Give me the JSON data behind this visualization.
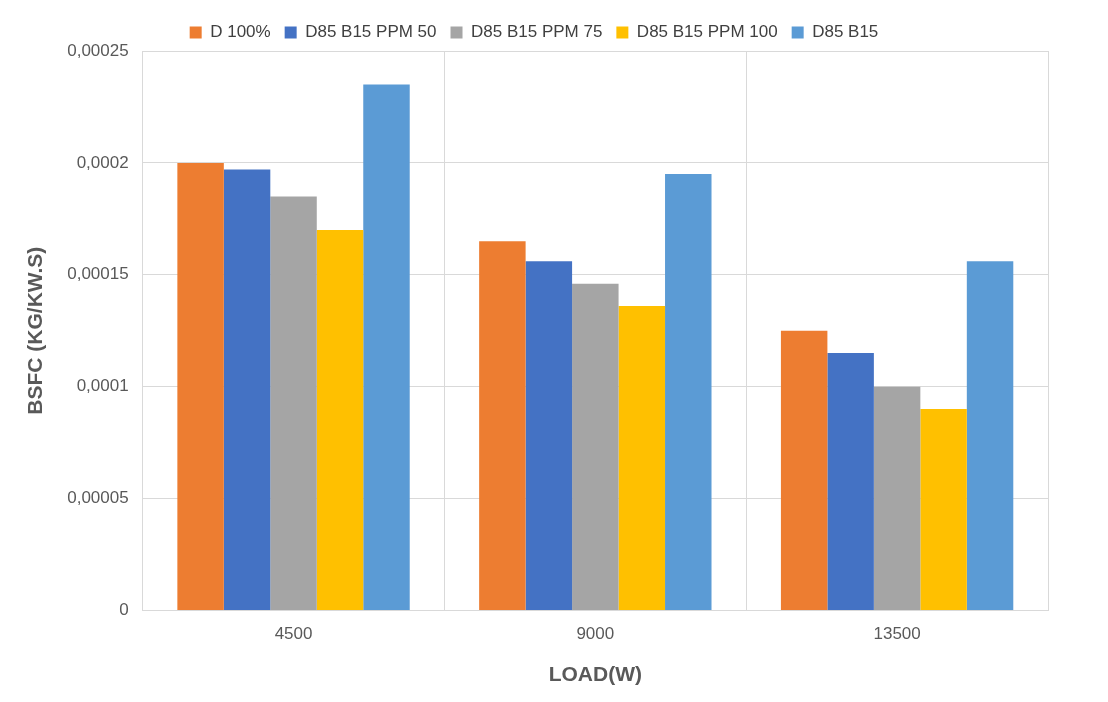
{
  "chart_data": {
    "type": "bar",
    "xlabel": "LOAD(W)",
    "ylabel": "BSFC (KG/KW.S)",
    "categories": [
      "4500",
      "9000",
      "13500"
    ],
    "series": [
      {
        "name": "D 100%",
        "color": "#ed7d31",
        "values": [
          0.0002,
          0.000165,
          0.000125
        ]
      },
      {
        "name": "D85 B15 PPM 50",
        "color": "#4472c4",
        "values": [
          0.000197,
          0.000156,
          0.000115
        ]
      },
      {
        "name": "D85 B15 PPM 75",
        "color": "#a5a5a5",
        "values": [
          0.000185,
          0.000146,
          0.0001
        ]
      },
      {
        "name": "D85 B15 PPM 100",
        "color": "#ffc000",
        "values": [
          0.00017,
          0.000136,
          9e-05
        ]
      },
      {
        "name": "D85 B15",
        "color": "#5b9bd5",
        "values": [
          0.000235,
          0.000195,
          0.000156
        ]
      }
    ],
    "ylim": [
      0,
      0.00025
    ],
    "yticks": [
      {
        "value": 0,
        "label": "0"
      },
      {
        "value": 5e-05,
        "label": "0,00005"
      },
      {
        "value": 0.0001,
        "label": "0,0001"
      },
      {
        "value": 0.00015,
        "label": "0,00015"
      },
      {
        "value": 0.0002,
        "label": "0,0002"
      },
      {
        "value": 0.00025,
        "label": "0,00025"
      }
    ],
    "grid": true,
    "legend": "top"
  }
}
